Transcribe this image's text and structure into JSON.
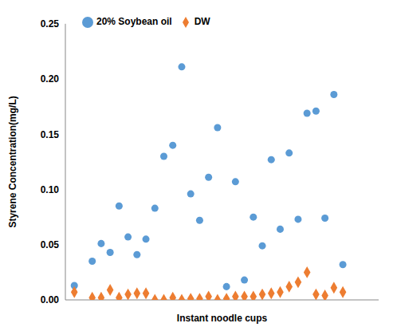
{
  "chart_data": {
    "type": "scatter",
    "x_label": "Instant noodle cups",
    "y_label": "Styrene Concentration(mg/L)",
    "x": [
      1,
      3,
      4,
      5,
      6,
      7,
      8,
      9,
      10,
      11,
      12,
      13,
      14,
      15,
      16,
      17,
      18,
      19,
      20,
      21,
      22,
      23,
      24,
      25,
      26,
      27,
      28,
      29,
      30,
      31
    ],
    "series": [
      {
        "name": "20% Soybean oil",
        "color": "#5B9BD5",
        "marker": "circle",
        "values": [
          0.013,
          0.035,
          0.051,
          0.043,
          0.085,
          0.057,
          0.041,
          0.055,
          0.083,
          0.13,
          0.14,
          0.211,
          0.096,
          0.072,
          0.111,
          0.156,
          0.012,
          0.107,
          0.018,
          0.075,
          0.049,
          0.127,
          0.064,
          0.133,
          0.073,
          0.169,
          0.171,
          0.074,
          0.186,
          0.032
        ]
      },
      {
        "name": "DW",
        "color": "#ED7D31",
        "marker": "diamond",
        "values": [
          0.007,
          0.002,
          0.002,
          0.009,
          0.002,
          0.005,
          0.006,
          0.006,
          0.0,
          0.0,
          0.002,
          0.0,
          0.001,
          0.001,
          0.003,
          0.0,
          0.001,
          0.003,
          0.003,
          0.003,
          0.005,
          0.006,
          0.007,
          0.012,
          0.016,
          0.025,
          0.005,
          0.004,
          0.011,
          0.007
        ]
      }
    ],
    "xlim": [
      0,
      35
    ],
    "ylim": [
      0,
      0.25
    ],
    "yticks": [
      {
        "value": 0,
        "label": "0.00"
      },
      {
        "value": 0.05,
        "label": "0.05"
      },
      {
        "value": 0.1,
        "label": "0.10"
      },
      {
        "value": 0.15,
        "label": "0.15"
      },
      {
        "value": 0.2,
        "label": "0.20"
      },
      {
        "value": 0.25,
        "label": "0.25"
      }
    ],
    "tick_labels": "y",
    "legend": "upper left"
  }
}
